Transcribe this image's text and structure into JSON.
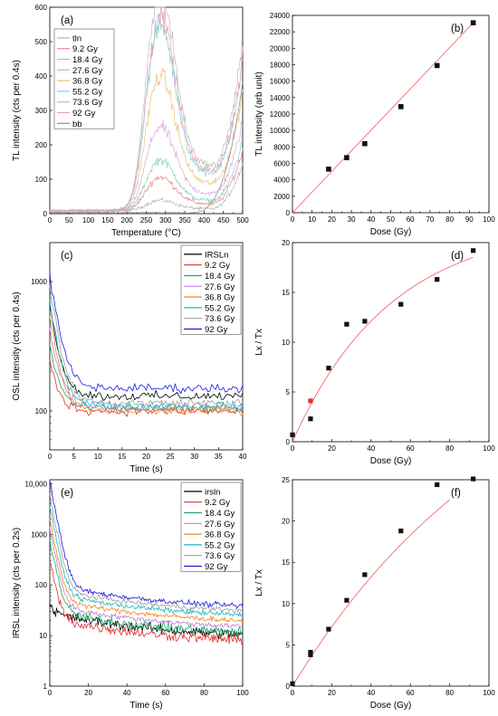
{
  "chart_data": [
    {
      "panel": "(a)",
      "type": "line",
      "xlabel": "Temperature (°C)",
      "ylabel": "TL intensity (cts per 0.4s)",
      "xlim": [
        0,
        500
      ],
      "ylim": [
        0,
        600
      ],
      "xticks": [
        0,
        50,
        100,
        150,
        200,
        250,
        300,
        350,
        400,
        450,
        500
      ],
      "yticks": [
        0,
        100,
        200,
        300,
        400,
        500,
        600
      ],
      "legend_position": "top-left",
      "series": [
        {
          "name": "tln",
          "color": "#a9b8c6",
          "peak": 25
        },
        {
          "name": "9.2 Gy",
          "color": "#e88a8a",
          "peak": 80
        },
        {
          "name": "18.4 Gy",
          "color": "#88d2c6",
          "peak": 120
        },
        {
          "name": "27.6 Gy",
          "color": "#d8a8e2",
          "peak": 200
        },
        {
          "name": "36.8 Gy",
          "color": "#e8c27a",
          "peak": 320
        },
        {
          "name": "55.2 Gy",
          "color": "#7fd4d4",
          "peak": 440
        },
        {
          "name": "73.6 Gy",
          "color": "#bdbdbd",
          "peak": 520
        },
        {
          "name": "92 Gy",
          "color": "#e4a0b8",
          "peak": 460
        },
        {
          "name": "bb",
          "color": "#8c8c8c",
          "peak": 10
        }
      ]
    },
    {
      "panel": "(b)",
      "type": "scatter",
      "xlabel": "Dose (Gy)",
      "ylabel": "TL intensity (arb unit)",
      "xlim": [
        0,
        100
      ],
      "ylim": [
        0,
        24000
      ],
      "xticks": [
        0,
        10,
        20,
        30,
        40,
        50,
        60,
        70,
        80,
        90,
        100
      ],
      "yticks": [
        0,
        2000,
        4000,
        6000,
        8000,
        10000,
        12000,
        14000,
        16000,
        18000,
        20000,
        22000,
        24000
      ],
      "points": [
        [
          18.4,
          5300
        ],
        [
          27.6,
          6700
        ],
        [
          36.8,
          8400
        ],
        [
          55.2,
          12900
        ],
        [
          73.6,
          17900
        ],
        [
          92,
          23100
        ]
      ],
      "fit": [
        [
          0,
          0
        ],
        [
          92,
          23100
        ]
      ]
    },
    {
      "panel": "(c)",
      "type": "line",
      "yscale": "log",
      "xlabel": "Time (s)",
      "ylabel": "OSL intensity (cts per 0.4s)",
      "xlim": [
        0,
        40
      ],
      "ylim": [
        50,
        2000
      ],
      "xticks": [
        0,
        5,
        10,
        15,
        20,
        25,
        30,
        35,
        40
      ],
      "yticks": [
        100,
        1000
      ],
      "legend_position": "top-right",
      "series": [
        {
          "name": "IRSLn",
          "color": "#000000",
          "start": 650,
          "base": 130
        },
        {
          "name": "9.2 Gy",
          "color": "#e53030",
          "start": 240,
          "base": 100
        },
        {
          "name": "18.4 Gy",
          "color": "#1ba86b",
          "start": 320,
          "base": 105
        },
        {
          "name": "27.6 Gy",
          "color": "#c77fe0",
          "start": 420,
          "base": 105
        },
        {
          "name": "36.8 Gy",
          "color": "#f08a1c",
          "start": 520,
          "base": 100
        },
        {
          "name": "55.2 Gy",
          "color": "#1ab8c8",
          "start": 700,
          "base": 110
        },
        {
          "name": "73.6 Gy",
          "color": "#a0a0a0",
          "start": 900,
          "base": 115
        },
        {
          "name": "92 Gy",
          "color": "#1a1ae0",
          "start": 1100,
          "base": 150
        }
      ]
    },
    {
      "panel": "(d)",
      "type": "scatter",
      "xlabel": "Dose (Gy)",
      "ylabel": "Lx / Tx",
      "xlim": [
        0,
        100
      ],
      "ylim": [
        0,
        20
      ],
      "xticks": [
        0,
        20,
        40,
        60,
        80,
        100
      ],
      "yticks": [
        0,
        5,
        10,
        15,
        20
      ],
      "points": [
        [
          0,
          0.7
        ],
        [
          9.2,
          2.3
        ],
        [
          18.4,
          7.4
        ],
        [
          27.6,
          11.8
        ],
        [
          36.8,
          12.1
        ],
        [
          55.2,
          13.8
        ],
        [
          73.6,
          16.3
        ],
        [
          92,
          19.2
        ]
      ],
      "highlight_points": [
        [
          9.2,
          4.1
        ]
      ],
      "fit_model": {
        "a": 22,
        "d0": 50
      }
    },
    {
      "panel": "(e)",
      "type": "line",
      "yscale": "log",
      "xlabel": "Time (s)",
      "ylabel": "IRSL intensity (cts per 0.2s)",
      "xlim": [
        0,
        100
      ],
      "ylim": [
        1,
        12000
      ],
      "xticks": [
        0,
        20,
        40,
        60,
        80,
        100
      ],
      "yticks": [
        1,
        10,
        100,
        1000,
        10000
      ],
      "ytick_labels": [
        "1",
        "10",
        "100",
        "1000",
        "10,000"
      ],
      "legend_position": "top-right",
      "series": [
        {
          "name": "irsln",
          "color": "#000000",
          "start": 45,
          "base": 9
        },
        {
          "name": "9.2 Gy",
          "color": "#e53030",
          "start": 300,
          "base": 7
        },
        {
          "name": "18.4 Gy",
          "color": "#1ba86b",
          "start": 800,
          "base": 10
        },
        {
          "name": "27.6 Gy",
          "color": "#c77fe0",
          "start": 1300,
          "base": 13
        },
        {
          "name": "36.8 Gy",
          "color": "#f08a1c",
          "start": 2000,
          "base": 17
        },
        {
          "name": "55.2 Gy",
          "color": "#1ab8c8",
          "start": 3500,
          "base": 22
        },
        {
          "name": "73.6 Gy",
          "color": "#a0a0a0",
          "start": 6000,
          "base": 27
        },
        {
          "name": "92 Gy",
          "color": "#1a1ae0",
          "start": 11000,
          "base": 33
        }
      ]
    },
    {
      "panel": "(f)",
      "type": "scatter",
      "xlabel": "Dose (Gy)",
      "ylabel": "Lx / Tx",
      "xlim": [
        0,
        100
      ],
      "ylim": [
        0,
        25
      ],
      "xticks": [
        0,
        20,
        40,
        60,
        80,
        100
      ],
      "yticks": [
        0,
        5,
        10,
        15,
        20,
        25
      ],
      "points": [
        [
          0,
          0.3
        ],
        [
          9.2,
          3.8
        ],
        [
          9.2,
          4.1
        ],
        [
          18.4,
          6.9
        ],
        [
          27.6,
          10.4
        ],
        [
          36.8,
          13.5
        ],
        [
          55.2,
          18.8
        ],
        [
          73.6,
          24.4
        ],
        [
          92,
          25.1
        ]
      ],
      "fit_model": {
        "a": 45,
        "d0": 115
      }
    }
  ]
}
